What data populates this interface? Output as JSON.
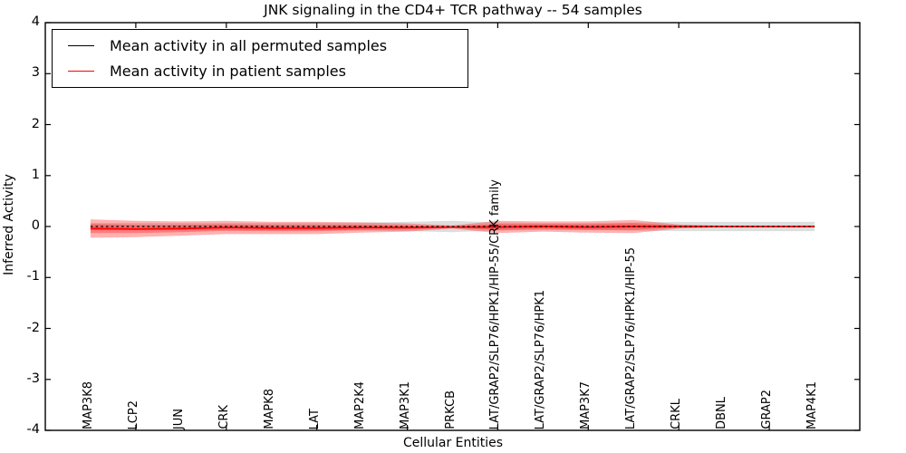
{
  "title": "JNK signaling in the CD4+ TCR pathway -- 54 samples",
  "axes": {
    "ylabel": "Inferred Activity",
    "xlabel": "Cellular Entities",
    "yticks": [
      4,
      3,
      2,
      1,
      0,
      -1,
      -2,
      -3,
      -4
    ],
    "ytick_labels": [
      "4",
      "3",
      "2",
      "1",
      "0",
      "-1",
      "-2",
      "-3",
      "-4"
    ]
  },
  "legend": {
    "items": [
      {
        "label": "Mean activity in all permuted samples",
        "color": "#000000"
      },
      {
        "label": "Mean activity in patient samples",
        "color": "#ff0000"
      }
    ]
  },
  "chart_data": {
    "type": "line",
    "title": "JNK signaling in the CD4+ TCR pathway -- 54 samples",
    "xlabel": "Cellular Entities",
    "ylabel": "Inferred Activity",
    "ylim": [
      -4,
      4
    ],
    "xlim": [
      0,
      18
    ],
    "xtick_units": [
      2,
      4,
      6,
      8,
      10,
      12,
      14,
      16
    ],
    "legend_position": "upper left",
    "grid": false,
    "categories": [
      "MAP3K8",
      "LCP2",
      "JUN",
      "CRK",
      "MAPK8",
      "LAT",
      "MAP2K4",
      "MAP3K1",
      "PRKCB",
      "LAT/GRAP2/SLP76/HPK1/HIP-55/CRK family",
      "LAT/GRAP2/SLP76/HPK1",
      "MAP3K7",
      "LAT/GRAP2/SLP76/HPK1/HIP-55",
      "CRKL",
      "DBNL",
      "GRAP2",
      "MAP4K1"
    ],
    "series": [
      {
        "name": "Mean activity in all permuted samples",
        "color": "#000000",
        "dash": true,
        "mean": [
          0,
          0,
          0,
          0,
          0,
          0,
          0,
          0,
          0,
          0,
          0,
          0,
          0,
          0,
          0,
          0,
          0
        ],
        "std": [
          0.07,
          0.07,
          0.07,
          0.07,
          0.07,
          0.07,
          0.08,
          0.09,
          0.11,
          0.08,
          0.07,
          0.07,
          0.08,
          0.09,
          0.09,
          0.09,
          0.09
        ]
      },
      {
        "name": "Mean activity in patient samples",
        "color": "#ff0000",
        "dash": false,
        "mean": [
          -0.04,
          -0.05,
          -0.04,
          -0.02,
          -0.03,
          -0.03,
          -0.02,
          -0.02,
          -0.01,
          -0.01,
          0,
          -0.01,
          0,
          0,
          0,
          0,
          0
        ],
        "std": [
          0.18,
          0.16,
          0.14,
          0.13,
          0.12,
          0.12,
          0.1,
          0.08,
          0.03,
          0.12,
          0.1,
          0.11,
          0.13,
          0.04,
          0.015,
          0.015,
          0.015
        ]
      }
    ],
    "band_layers": [
      {
        "series": 0,
        "sigma": 1.0,
        "color": "#aaaaaa",
        "opacity": 0.4,
        "name": "permuted-std-band"
      },
      {
        "series": 1,
        "sigma": 1.0,
        "color": "#ff0000",
        "opacity": 0.3,
        "name": "patient-std-band-outer"
      },
      {
        "series": 1,
        "sigma": 0.5,
        "color": "#ff0000",
        "opacity": 0.3,
        "name": "patient-std-band-inner"
      }
    ]
  }
}
